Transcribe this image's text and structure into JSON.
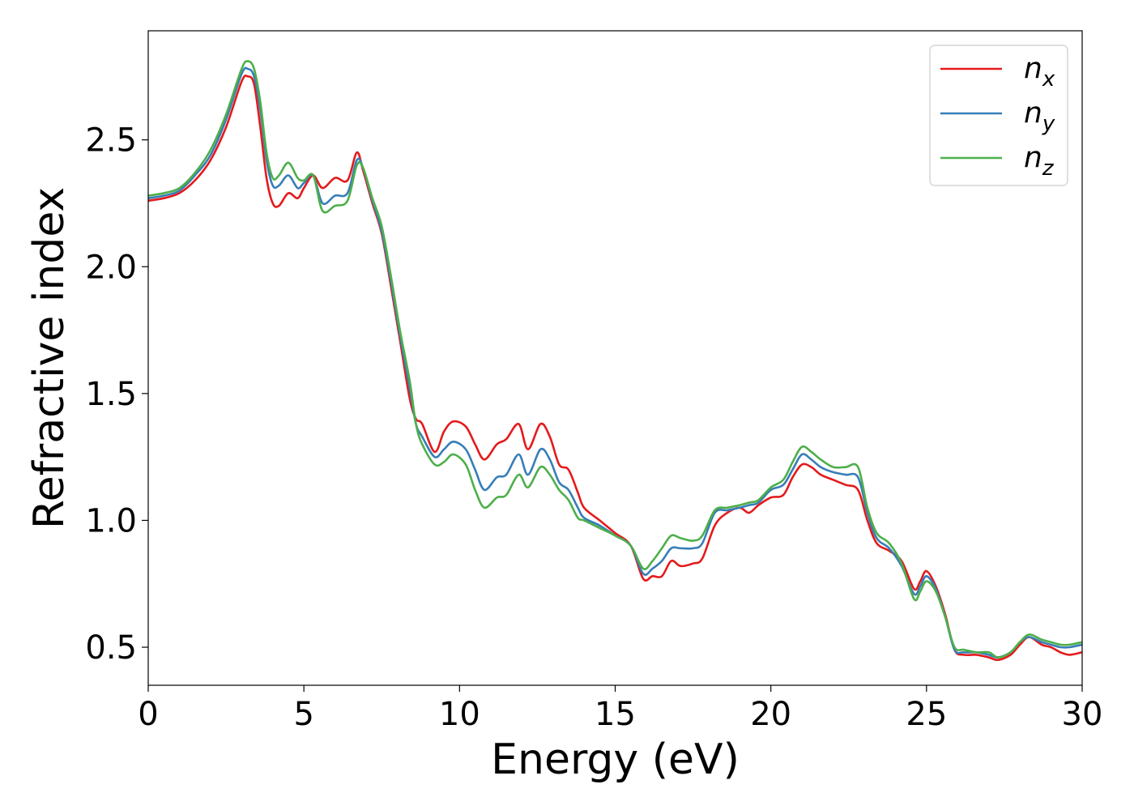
{
  "chart_data": {
    "type": "line",
    "title": "",
    "xlabel": "Energy (eV)",
    "ylabel": "Refractive index",
    "xlim": [
      0,
      30
    ],
    "ylim": [
      0.35,
      2.93
    ],
    "xticks": [
      0,
      5,
      10,
      15,
      20,
      25,
      30
    ],
    "yticks": [
      0.5,
      1.0,
      1.5,
      2.0,
      2.5
    ],
    "xtick_labels": [
      "0",
      "5",
      "10",
      "15",
      "20",
      "25",
      "30"
    ],
    "ytick_labels": [
      "0.5",
      "1.0",
      "1.5",
      "2.0",
      "2.5"
    ],
    "grid": false,
    "legend_position": "top-right",
    "series": [
      {
        "name": "n",
        "subscript": "x",
        "color": "#e41a1c",
        "points": [
          [
            0,
            2.26
          ],
          [
            0.5,
            2.27
          ],
          [
            1,
            2.29
          ],
          [
            1.5,
            2.34
          ],
          [
            2,
            2.42
          ],
          [
            2.5,
            2.55
          ],
          [
            3,
            2.73
          ],
          [
            3.2,
            2.75
          ],
          [
            3.4,
            2.72
          ],
          [
            3.6,
            2.55
          ],
          [
            3.8,
            2.35
          ],
          [
            4,
            2.25
          ],
          [
            4.2,
            2.24
          ],
          [
            4.5,
            2.29
          ],
          [
            4.8,
            2.27
          ],
          [
            5,
            2.31
          ],
          [
            5.3,
            2.36
          ],
          [
            5.6,
            2.31
          ],
          [
            6,
            2.35
          ],
          [
            6.4,
            2.34
          ],
          [
            6.7,
            2.45
          ],
          [
            6.9,
            2.38
          ],
          [
            7.2,
            2.25
          ],
          [
            7.5,
            2.13
          ],
          [
            7.8,
            1.92
          ],
          [
            8.1,
            1.7
          ],
          [
            8.4,
            1.48
          ],
          [
            8.6,
            1.4
          ],
          [
            8.8,
            1.38
          ],
          [
            9.2,
            1.27
          ],
          [
            9.5,
            1.35
          ],
          [
            9.8,
            1.39
          ],
          [
            10.2,
            1.37
          ],
          [
            10.5,
            1.3
          ],
          [
            10.8,
            1.24
          ],
          [
            11.2,
            1.3
          ],
          [
            11.5,
            1.32
          ],
          [
            11.9,
            1.38
          ],
          [
            12.2,
            1.28
          ],
          [
            12.6,
            1.38
          ],
          [
            12.9,
            1.33
          ],
          [
            13.2,
            1.22
          ],
          [
            13.5,
            1.2
          ],
          [
            13.8,
            1.11
          ],
          [
            14,
            1.05
          ],
          [
            14.5,
            1.0
          ],
          [
            15,
            0.95
          ],
          [
            15.5,
            0.9
          ],
          [
            15.9,
            0.77
          ],
          [
            16.2,
            0.78
          ],
          [
            16.5,
            0.78
          ],
          [
            16.8,
            0.84
          ],
          [
            17.1,
            0.82
          ],
          [
            17.5,
            0.83
          ],
          [
            17.8,
            0.85
          ],
          [
            18.2,
            0.98
          ],
          [
            18.6,
            1.03
          ],
          [
            19,
            1.05
          ],
          [
            19.3,
            1.03
          ],
          [
            19.6,
            1.06
          ],
          [
            20,
            1.09
          ],
          [
            20.4,
            1.1
          ],
          [
            20.7,
            1.17
          ],
          [
            21,
            1.22
          ],
          [
            21.3,
            1.21
          ],
          [
            21.6,
            1.18
          ],
          [
            22,
            1.16
          ],
          [
            22.4,
            1.14
          ],
          [
            22.8,
            1.12
          ],
          [
            23.1,
            1.0
          ],
          [
            23.4,
            0.91
          ],
          [
            23.8,
            0.88
          ],
          [
            24.2,
            0.84
          ],
          [
            24.6,
            0.73
          ],
          [
            24.8,
            0.76
          ],
          [
            25,
            0.8
          ],
          [
            25.3,
            0.74
          ],
          [
            25.6,
            0.63
          ],
          [
            25.9,
            0.49
          ],
          [
            26.2,
            0.47
          ],
          [
            26.6,
            0.47
          ],
          [
            27,
            0.46
          ],
          [
            27.3,
            0.45
          ],
          [
            27.7,
            0.47
          ],
          [
            28,
            0.51
          ],
          [
            28.3,
            0.54
          ],
          [
            28.7,
            0.51
          ],
          [
            29,
            0.5
          ],
          [
            29.3,
            0.48
          ],
          [
            29.6,
            0.47
          ],
          [
            30,
            0.48
          ]
        ]
      },
      {
        "name": "n",
        "subscript": "y",
        "color": "#377eb8",
        "points": [
          [
            0,
            2.27
          ],
          [
            0.5,
            2.28
          ],
          [
            1,
            2.3
          ],
          [
            1.5,
            2.36
          ],
          [
            2,
            2.44
          ],
          [
            2.5,
            2.58
          ],
          [
            3,
            2.76
          ],
          [
            3.2,
            2.78
          ],
          [
            3.4,
            2.75
          ],
          [
            3.6,
            2.62
          ],
          [
            3.8,
            2.42
          ],
          [
            4,
            2.32
          ],
          [
            4.2,
            2.32
          ],
          [
            4.5,
            2.36
          ],
          [
            4.8,
            2.31
          ],
          [
            5,
            2.33
          ],
          [
            5.3,
            2.36
          ],
          [
            5.6,
            2.25
          ],
          [
            6,
            2.28
          ],
          [
            6.4,
            2.29
          ],
          [
            6.7,
            2.42
          ],
          [
            6.9,
            2.39
          ],
          [
            7.2,
            2.26
          ],
          [
            7.5,
            2.14
          ],
          [
            7.8,
            1.94
          ],
          [
            8.1,
            1.72
          ],
          [
            8.4,
            1.52
          ],
          [
            8.6,
            1.38
          ],
          [
            8.8,
            1.33
          ],
          [
            9.2,
            1.25
          ],
          [
            9.5,
            1.28
          ],
          [
            9.8,
            1.31
          ],
          [
            10.2,
            1.28
          ],
          [
            10.5,
            1.2
          ],
          [
            10.8,
            1.12
          ],
          [
            11.2,
            1.17
          ],
          [
            11.5,
            1.18
          ],
          [
            11.9,
            1.26
          ],
          [
            12.2,
            1.18
          ],
          [
            12.6,
            1.28
          ],
          [
            12.9,
            1.24
          ],
          [
            13.2,
            1.15
          ],
          [
            13.5,
            1.12
          ],
          [
            13.8,
            1.05
          ],
          [
            14,
            1.01
          ],
          [
            14.5,
            0.98
          ],
          [
            15,
            0.94
          ],
          [
            15.5,
            0.9
          ],
          [
            15.9,
            0.79
          ],
          [
            16.2,
            0.81
          ],
          [
            16.5,
            0.84
          ],
          [
            16.8,
            0.89
          ],
          [
            17.1,
            0.89
          ],
          [
            17.5,
            0.89
          ],
          [
            17.8,
            0.91
          ],
          [
            18.2,
            1.03
          ],
          [
            18.6,
            1.04
          ],
          [
            19,
            1.05
          ],
          [
            19.3,
            1.06
          ],
          [
            19.6,
            1.07
          ],
          [
            20,
            1.12
          ],
          [
            20.4,
            1.14
          ],
          [
            20.7,
            1.2
          ],
          [
            21,
            1.26
          ],
          [
            21.3,
            1.24
          ],
          [
            21.6,
            1.21
          ],
          [
            22,
            1.19
          ],
          [
            22.4,
            1.18
          ],
          [
            22.8,
            1.17
          ],
          [
            23.1,
            1.03
          ],
          [
            23.4,
            0.93
          ],
          [
            23.8,
            0.89
          ],
          [
            24.2,
            0.82
          ],
          [
            24.6,
            0.71
          ],
          [
            24.8,
            0.74
          ],
          [
            25,
            0.78
          ],
          [
            25.3,
            0.73
          ],
          [
            25.6,
            0.62
          ],
          [
            25.9,
            0.49
          ],
          [
            26.2,
            0.48
          ],
          [
            26.6,
            0.48
          ],
          [
            27,
            0.47
          ],
          [
            27.3,
            0.46
          ],
          [
            27.7,
            0.48
          ],
          [
            28,
            0.52
          ],
          [
            28.3,
            0.54
          ],
          [
            28.7,
            0.52
          ],
          [
            29,
            0.51
          ],
          [
            29.3,
            0.5
          ],
          [
            29.6,
            0.5
          ],
          [
            30,
            0.51
          ]
        ]
      },
      {
        "name": "n",
        "subscript": "z",
        "color": "#4daf4a",
        "points": [
          [
            0,
            2.28
          ],
          [
            0.5,
            2.29
          ],
          [
            1,
            2.31
          ],
          [
            1.5,
            2.37
          ],
          [
            2,
            2.46
          ],
          [
            2.5,
            2.6
          ],
          [
            3,
            2.78
          ],
          [
            3.2,
            2.81
          ],
          [
            3.4,
            2.78
          ],
          [
            3.6,
            2.65
          ],
          [
            3.8,
            2.45
          ],
          [
            4,
            2.35
          ],
          [
            4.2,
            2.36
          ],
          [
            4.5,
            2.41
          ],
          [
            4.8,
            2.35
          ],
          [
            5,
            2.34
          ],
          [
            5.3,
            2.36
          ],
          [
            5.6,
            2.22
          ],
          [
            6,
            2.24
          ],
          [
            6.4,
            2.26
          ],
          [
            6.7,
            2.4
          ],
          [
            6.9,
            2.39
          ],
          [
            7.2,
            2.27
          ],
          [
            7.5,
            2.16
          ],
          [
            7.8,
            1.96
          ],
          [
            8.1,
            1.74
          ],
          [
            8.4,
            1.55
          ],
          [
            8.6,
            1.38
          ],
          [
            8.8,
            1.3
          ],
          [
            9.2,
            1.22
          ],
          [
            9.5,
            1.23
          ],
          [
            9.8,
            1.26
          ],
          [
            10.2,
            1.22
          ],
          [
            10.5,
            1.12
          ],
          [
            10.8,
            1.05
          ],
          [
            11.2,
            1.09
          ],
          [
            11.5,
            1.1
          ],
          [
            11.9,
            1.18
          ],
          [
            12.2,
            1.13
          ],
          [
            12.6,
            1.21
          ],
          [
            12.9,
            1.18
          ],
          [
            13.2,
            1.12
          ],
          [
            13.5,
            1.08
          ],
          [
            13.8,
            1.01
          ],
          [
            14,
            1.0
          ],
          [
            14.5,
            0.97
          ],
          [
            15,
            0.94
          ],
          [
            15.5,
            0.9
          ],
          [
            15.9,
            0.81
          ],
          [
            16.2,
            0.84
          ],
          [
            16.5,
            0.89
          ],
          [
            16.8,
            0.94
          ],
          [
            17.1,
            0.93
          ],
          [
            17.5,
            0.92
          ],
          [
            17.8,
            0.94
          ],
          [
            18.2,
            1.04
          ],
          [
            18.6,
            1.05
          ],
          [
            19,
            1.06
          ],
          [
            19.3,
            1.07
          ],
          [
            19.6,
            1.08
          ],
          [
            20,
            1.13
          ],
          [
            20.4,
            1.16
          ],
          [
            20.7,
            1.23
          ],
          [
            21,
            1.29
          ],
          [
            21.3,
            1.27
          ],
          [
            21.6,
            1.24
          ],
          [
            22,
            1.21
          ],
          [
            22.4,
            1.21
          ],
          [
            22.8,
            1.21
          ],
          [
            23.1,
            1.05
          ],
          [
            23.4,
            0.95
          ],
          [
            23.8,
            0.91
          ],
          [
            24.2,
            0.83
          ],
          [
            24.6,
            0.69
          ],
          [
            24.8,
            0.72
          ],
          [
            25,
            0.76
          ],
          [
            25.3,
            0.72
          ],
          [
            25.6,
            0.62
          ],
          [
            25.9,
            0.5
          ],
          [
            26.2,
            0.49
          ],
          [
            26.6,
            0.48
          ],
          [
            27,
            0.48
          ],
          [
            27.3,
            0.46
          ],
          [
            27.7,
            0.48
          ],
          [
            28,
            0.52
          ],
          [
            28.3,
            0.55
          ],
          [
            28.7,
            0.53
          ],
          [
            29,
            0.52
          ],
          [
            29.3,
            0.51
          ],
          [
            29.6,
            0.51
          ],
          [
            30,
            0.52
          ]
        ]
      }
    ]
  }
}
